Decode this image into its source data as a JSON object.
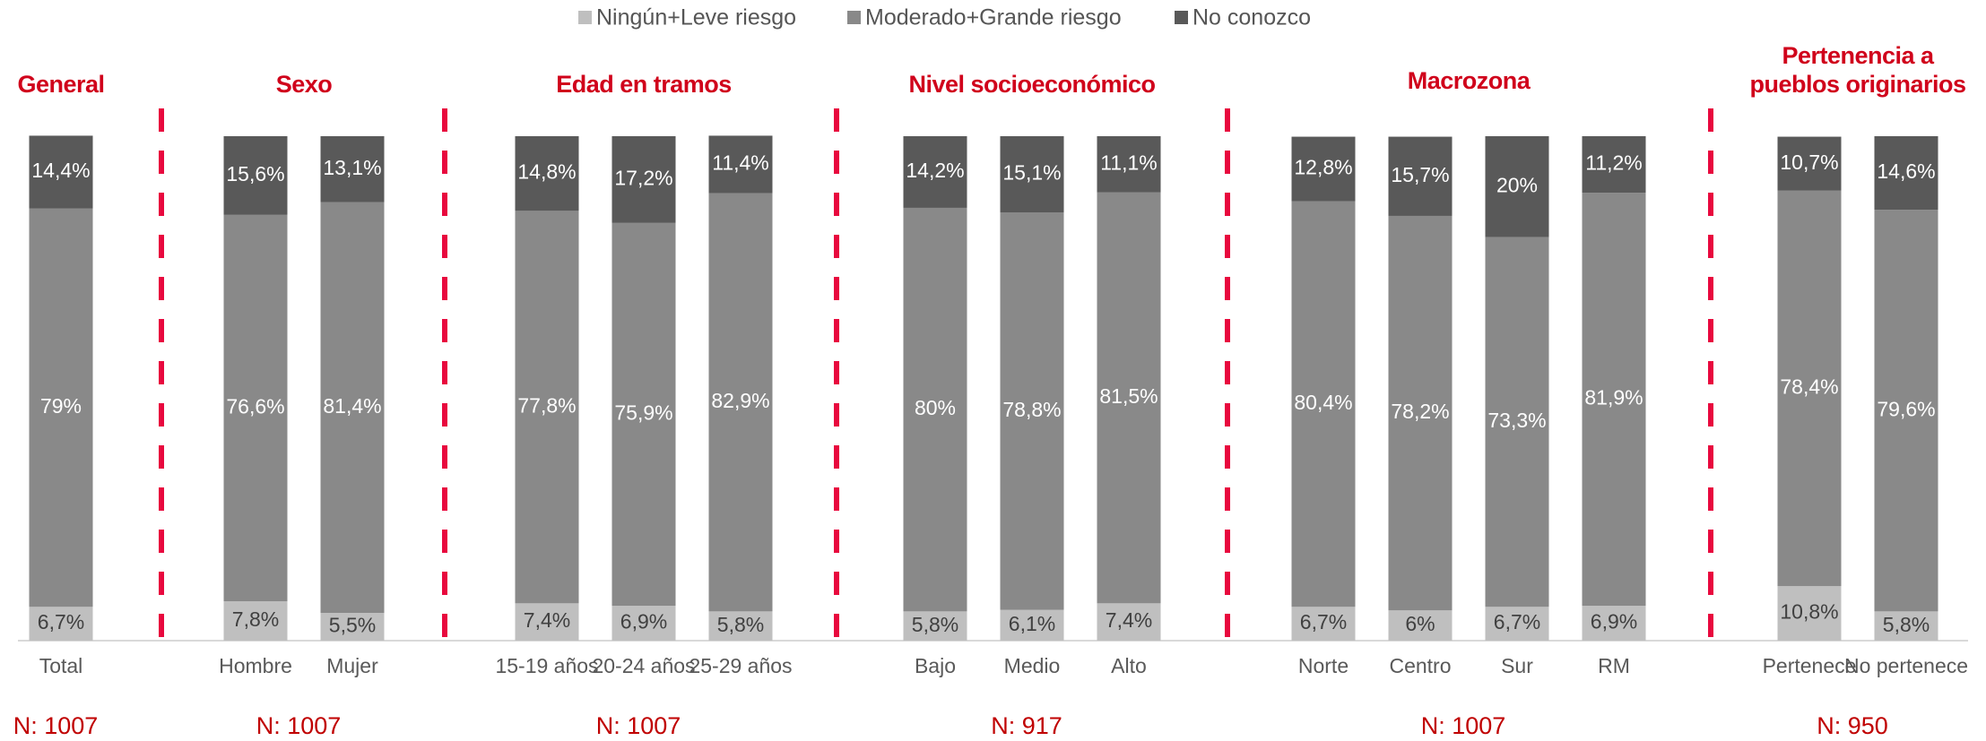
{
  "chart_data": {
    "type": "stacked_bar",
    "series": [
      {
        "name": "Ningún+Leve riesgo",
        "color": "#bfbfbf",
        "values": [
          6.7,
          7.8,
          5.5,
          7.4,
          6.9,
          5.8,
          5.8,
          6.1,
          7.4,
          6.7,
          6,
          6.7,
          6.9,
          10.8,
          5.8
        ],
        "value_labels": [
          "6,7%",
          "7,8%",
          "5,5%",
          "7,4%",
          "6,9%",
          "5,8%",
          "5,8%",
          "6,1%",
          "7,4%",
          "6,7%",
          "6%",
          "6,7%",
          "6,9%",
          "10,8%",
          "5,8%"
        ]
      },
      {
        "name": "Moderado+Grande riesgo",
        "color": "#898989",
        "values": [
          79,
          76.6,
          81.4,
          77.8,
          75.9,
          82.9,
          80,
          78.8,
          81.5,
          80.4,
          78.2,
          73.3,
          81.9,
          78.4,
          79.6
        ],
        "value_labels": [
          "79%",
          "76,6%",
          "81,4%",
          "77,8%",
          "75,9%",
          "82,9%",
          "80%",
          "78,8%",
          "81,5%",
          "80,4%",
          "78,2%",
          "73,3%",
          "81,9%",
          "78,4%",
          "79,6%"
        ]
      },
      {
        "name": "No conozco",
        "color": "#595959",
        "values": [
          14.4,
          15.6,
          13.1,
          14.8,
          17.2,
          11.4,
          14.2,
          15.1,
          11.1,
          12.8,
          15.7,
          20,
          11.2,
          10.7,
          14.6
        ],
        "value_labels": [
          "14,4%",
          "15,6%",
          "13,1%",
          "14,8%",
          "17,2%",
          "11,4%",
          "14,2%",
          "15,1%",
          "11,1%",
          "12,8%",
          "15,7%",
          "20%",
          "11,2%",
          "10,7%",
          "14,6%"
        ]
      }
    ],
    "groups": [
      {
        "title": "General",
        "note": "N: 1007",
        "categories": [
          "Total"
        ]
      },
      {
        "title": "Sexo",
        "note": "N: 1007",
        "categories": [
          "Hombre",
          "Mujer"
        ]
      },
      {
        "title": "Edad en tramos",
        "note": "N: 1007",
        "categories": [
          "15-19 años",
          "20-24 años",
          "25-29 años"
        ]
      },
      {
        "title": "Nivel socioeconómico",
        "note": "N: 917",
        "categories": [
          "Bajo",
          "Medio",
          "Alto"
        ]
      },
      {
        "title": "Macrozona",
        "note": "N: 1007",
        "categories": [
          "Norte",
          "Centro",
          "Sur",
          "RM"
        ]
      },
      {
        "title": "Pertenencia a pueblos originarios",
        "note": "N: 950",
        "categories": [
          "Pertenece",
          "No pertenece"
        ]
      }
    ],
    "ylim": [
      0,
      100
    ]
  }
}
